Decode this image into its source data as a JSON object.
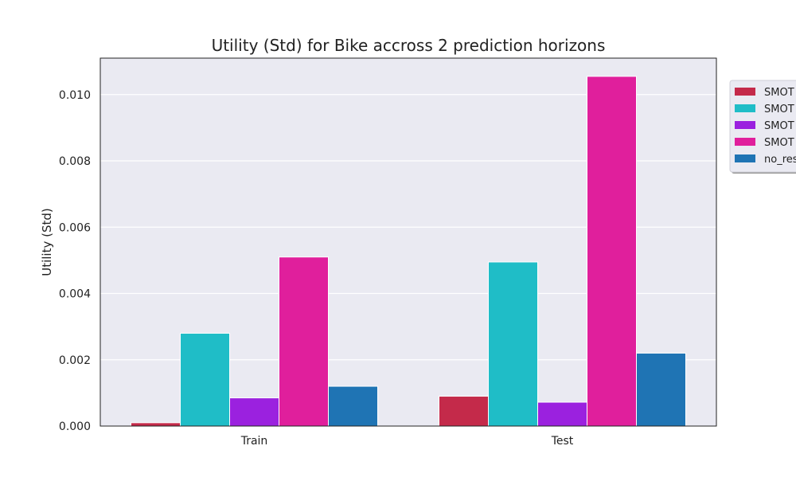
{
  "chart_data": {
    "type": "bar",
    "title": "Utility (Std) for Bike accross 2 prediction horizons",
    "xlabel": "",
    "ylabel": "Utility (Std)",
    "categories": [
      "Train",
      "Test"
    ],
    "ylim": [
      0,
      0.0111
    ],
    "yticks": [
      "0.000",
      "0.002",
      "0.004",
      "0.006",
      "0.008",
      "0.010"
    ],
    "grid": true,
    "legend_position": "top-right",
    "series": [
      {
        "name": "SMOT",
        "color": "#c42a4a",
        "values": [
          0.0001,
          0.0009
        ]
      },
      {
        "name": "SMOT",
        "color": "#1fbdc7",
        "values": [
          0.0028,
          0.00495
        ]
      },
      {
        "name": "SMOT",
        "color": "#9b21df",
        "values": [
          0.00085,
          0.00072
        ]
      },
      {
        "name": "SMOT",
        "color": "#e01f9c",
        "values": [
          0.0051,
          0.01055
        ]
      },
      {
        "name": "no_res",
        "color": "#1f74b4",
        "values": [
          0.0012,
          0.0022
        ]
      }
    ]
  }
}
